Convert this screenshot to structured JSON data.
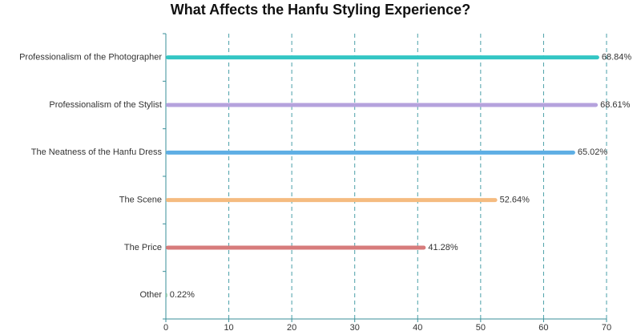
{
  "chart_data": {
    "type": "hbar",
    "title": "What Affects the Hanfu Styling Experience?",
    "categories": [
      "Professionalism of the Photographer",
      "Professionalism of the Stylist",
      "The Neatness of the Hanfu Dress",
      "The Scene",
      "The Price",
      "Other"
    ],
    "values": [
      68.84,
      68.61,
      65.02,
      52.64,
      41.28,
      0.22
    ],
    "value_labels": [
      "68.84%",
      "68.61%",
      "65.02%",
      "52.64%",
      "41.28%",
      "0.22%"
    ],
    "colors": [
      "#33c6c4",
      "#b5a2dd",
      "#5eaee4",
      "#f5bb80",
      "#d77b7b",
      "#8fc9a8"
    ],
    "xlim": [
      0,
      70
    ],
    "xticks": [
      0,
      10,
      20,
      30,
      40,
      50,
      60,
      70
    ],
    "grid": true
  }
}
